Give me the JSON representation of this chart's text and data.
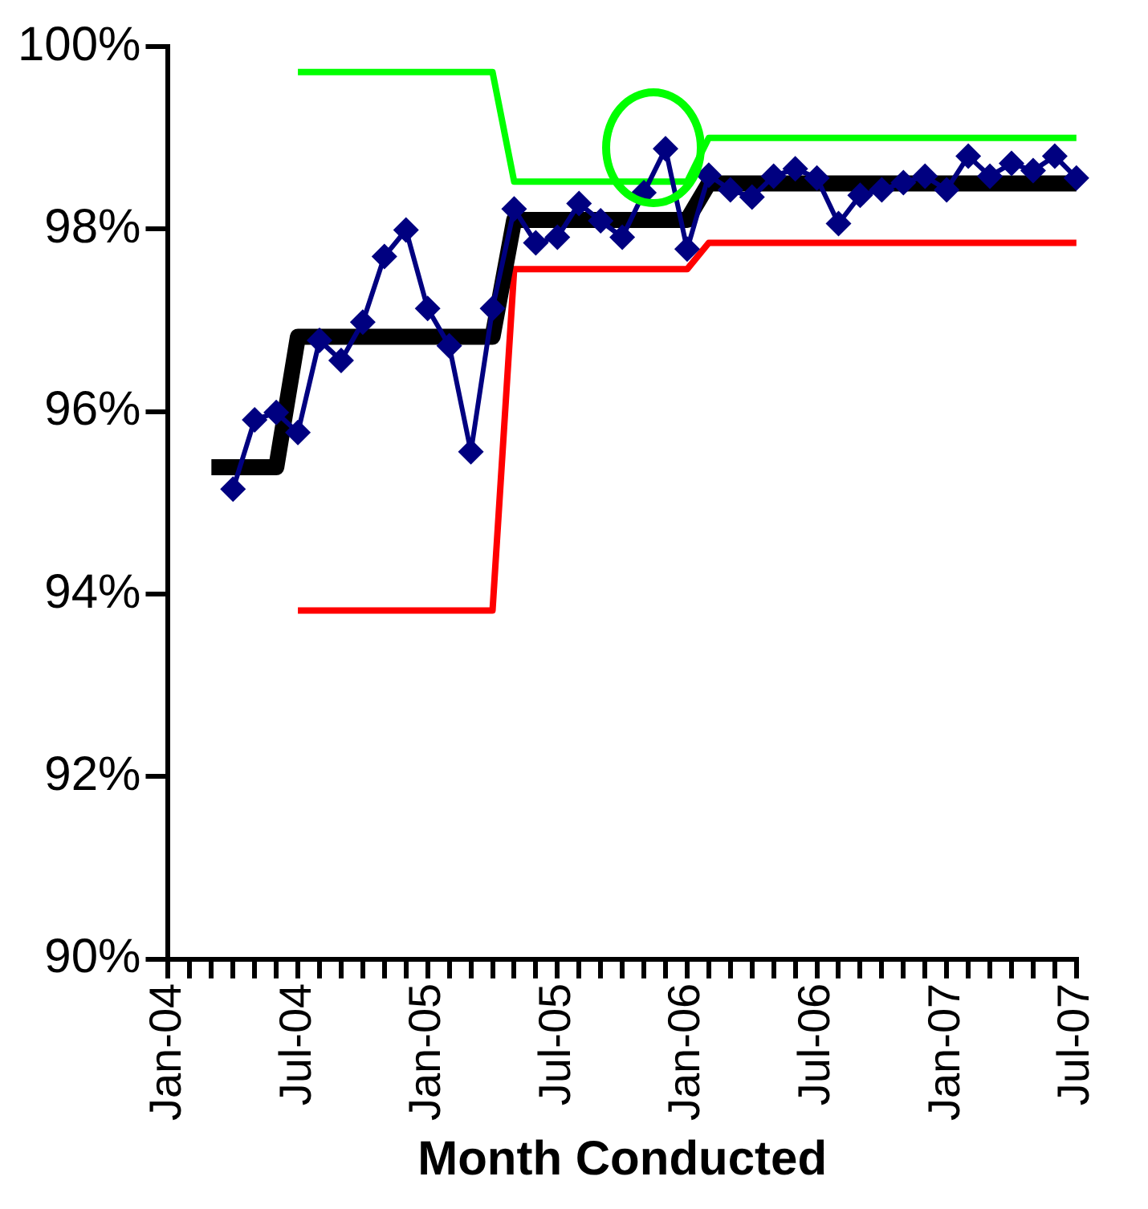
{
  "chart_data": {
    "type": "line",
    "xlabel": "Month Conducted",
    "xlim": [
      "2004-01",
      "2007-07"
    ],
    "xticks": [
      {
        "value": "2004-01",
        "label": "Jan-04"
      },
      {
        "value": "2004-02",
        "label": null
      },
      {
        "value": "2004-03",
        "label": null
      },
      {
        "value": "2004-04",
        "label": null
      },
      {
        "value": "2004-05",
        "label": null
      },
      {
        "value": "2004-06",
        "label": null
      },
      {
        "value": "2004-07",
        "label": "Jul-04"
      },
      {
        "value": "2004-08",
        "label": null
      },
      {
        "value": "2004-09",
        "label": null
      },
      {
        "value": "2004-10",
        "label": null
      },
      {
        "value": "2004-11",
        "label": null
      },
      {
        "value": "2004-12",
        "label": null
      },
      {
        "value": "2005-01",
        "label": "Jan-05"
      },
      {
        "value": "2005-02",
        "label": null
      },
      {
        "value": "2005-03",
        "label": null
      },
      {
        "value": "2005-04",
        "label": null
      },
      {
        "value": "2005-05",
        "label": null
      },
      {
        "value": "2005-06",
        "label": null
      },
      {
        "value": "2005-07",
        "label": "Jul-05"
      },
      {
        "value": "2005-08",
        "label": null
      },
      {
        "value": "2005-09",
        "label": null
      },
      {
        "value": "2005-10",
        "label": null
      },
      {
        "value": "2005-11",
        "label": null
      },
      {
        "value": "2005-12",
        "label": null
      },
      {
        "value": "2006-01",
        "label": "Jan-06"
      },
      {
        "value": "2006-02",
        "label": null
      },
      {
        "value": "2006-03",
        "label": null
      },
      {
        "value": "2006-04",
        "label": null
      },
      {
        "value": "2006-05",
        "label": null
      },
      {
        "value": "2006-06",
        "label": null
      },
      {
        "value": "2006-07",
        "label": "Jul-06"
      },
      {
        "value": "2006-08",
        "label": null
      },
      {
        "value": "2006-09",
        "label": null
      },
      {
        "value": "2006-10",
        "label": null
      },
      {
        "value": "2006-11",
        "label": null
      },
      {
        "value": "2006-12",
        "label": null
      },
      {
        "value": "2007-01",
        "label": "Jan-07"
      },
      {
        "value": "2007-02",
        "label": null
      },
      {
        "value": "2007-03",
        "label": null
      },
      {
        "value": "2007-04",
        "label": null
      },
      {
        "value": "2007-05",
        "label": null
      },
      {
        "value": "2007-06",
        "label": null
      },
      {
        "value": "2007-07",
        "label": "Jul-07"
      }
    ],
    "ylim": [
      90,
      100
    ],
    "yticks": [
      {
        "value": 90,
        "label": "90%"
      },
      {
        "value": 92,
        "label": "92%"
      },
      {
        "value": 94,
        "label": "94%"
      },
      {
        "value": 96,
        "label": "96%"
      },
      {
        "value": 98,
        "label": "98%"
      },
      {
        "value": 100,
        "label": "100%"
      }
    ],
    "grid": false,
    "legend": false,
    "line_style": "solid",
    "series": [
      {
        "color": "#ff0000",
        "marker": "none",
        "x": [
          "2004-07",
          "2005-04",
          "2005-05",
          "2006-01",
          "2006-02",
          "2007-07"
        ],
        "values": [
          93.82,
          93.82,
          97.56,
          97.56,
          97.85,
          97.85
        ]
      },
      {
        "color": "#00ff00",
        "marker": "none",
        "x": [
          "2004-07",
          "2005-04",
          "2005-05",
          "2006-01",
          "2006-02",
          "2007-07"
        ],
        "values": [
          99.72,
          99.72,
          98.52,
          98.52,
          99.0,
          99.0
        ]
      },
      {
        "color": "#000000",
        "marker": "none",
        "x": [
          "2004-03",
          "2004-06",
          "2004-07",
          "2005-04",
          "2005-05",
          "2006-01",
          "2006-02",
          "2007-07"
        ],
        "values": [
          95.39,
          95.39,
          96.82,
          96.82,
          98.1,
          98.1,
          98.5,
          98.5
        ]
      },
      {
        "color": "#000080",
        "marker": "diamond",
        "x": [
          "2004-04",
          "2004-05",
          "2004-06",
          "2004-07",
          "2004-08",
          "2004-09",
          "2004-10",
          "2004-11",
          "2004-12",
          "2005-01",
          "2005-02",
          "2005-03",
          "2005-04",
          "2005-05",
          "2005-06",
          "2005-07",
          "2005-08",
          "2005-09",
          "2005-10",
          "2005-11",
          "2005-12",
          "2006-01",
          "2006-02",
          "2006-03",
          "2006-04",
          "2006-05",
          "2006-06",
          "2006-07",
          "2006-08",
          "2006-09",
          "2006-10",
          "2006-11",
          "2006-12",
          "2007-01",
          "2007-02",
          "2007-03",
          "2007-04",
          "2007-05",
          "2007-06",
          "2007-07"
        ],
        "values": [
          95.15,
          95.91,
          95.99,
          95.77,
          96.78,
          96.56,
          96.98,
          97.7,
          97.99,
          97.13,
          96.72,
          95.56,
          97.13,
          98.22,
          97.85,
          97.91,
          98.28,
          98.09,
          97.91,
          98.4,
          98.88,
          97.78,
          98.59,
          98.43,
          98.35,
          98.58,
          98.66,
          98.56,
          98.06,
          98.37,
          98.43,
          98.51,
          98.58,
          98.43,
          98.8,
          98.58,
          98.72,
          98.64,
          98.8,
          98.56
        ]
      }
    ]
  }
}
